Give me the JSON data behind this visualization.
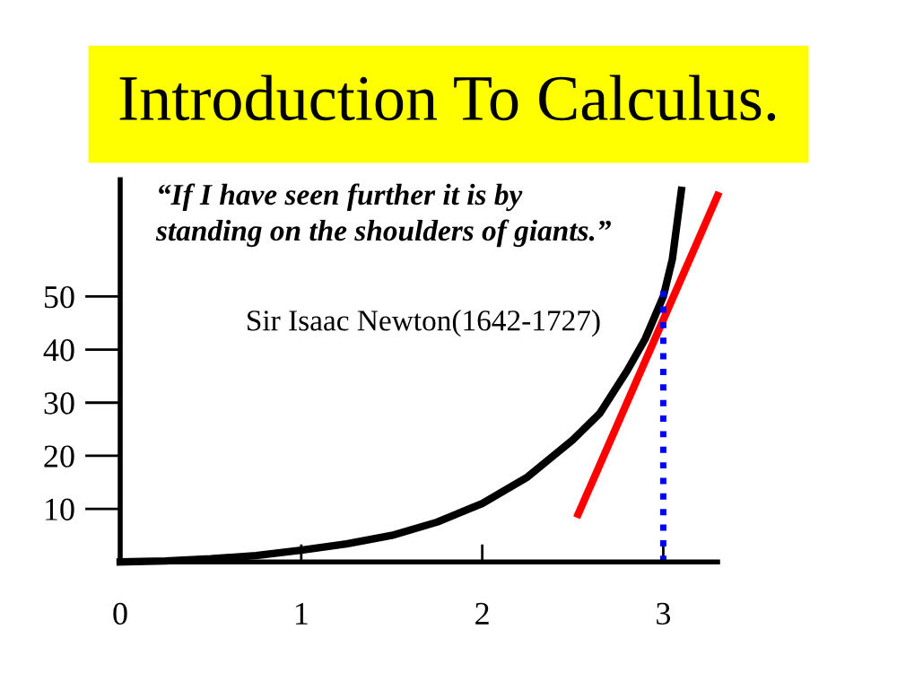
{
  "chart_data": {
    "type": "line",
    "title": "Introduction To Calculus.",
    "annotations": [
      "“If I have seen further it is by\nstanding on the shoulders of giants.”",
      "Sir Isaac Newton(1642-1727)"
    ],
    "series": [
      {
        "color": "#000000",
        "x": [
          0,
          0.25,
          0.5,
          0.75,
          1,
          1.25,
          1.5,
          1.75,
          2,
          2.25,
          2.5,
          2.65,
          2.8,
          2.9,
          3,
          3.05,
          3.1
        ],
        "values": [
          0,
          0.2,
          0.6,
          1.2,
          2.2,
          3.4,
          5,
          7.5,
          11,
          16,
          23,
          28,
          36,
          42,
          50,
          57,
          70
        ],
        "line_style": "solid"
      },
      {
        "color": "#ff0000",
        "x": [
          2.53,
          3.3
        ],
        "values": [
          9,
          69
        ],
        "line_style": "solid"
      },
      {
        "color": "#0000ff",
        "x": [
          3,
          3
        ],
        "values": [
          0,
          52
        ],
        "line_style": "dotted"
      }
    ],
    "xlim": [
      0,
      3.3
    ],
    "ylim": [
      0,
      72
    ],
    "xticks": [
      0,
      1,
      2,
      3
    ],
    "yticks": [
      10,
      20,
      30,
      40,
      50
    ],
    "grid": false,
    "legend": false
  }
}
